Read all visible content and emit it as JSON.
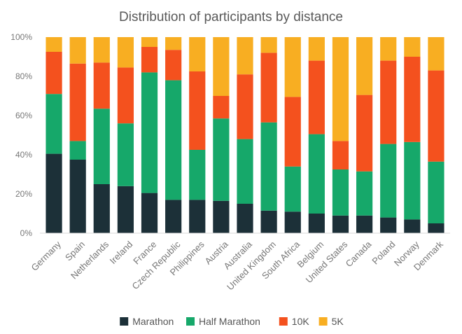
{
  "chart_data": {
    "type": "bar",
    "stacked": true,
    "percent": true,
    "title": "Distribution of participants by distance",
    "xlabel": "",
    "ylabel": "",
    "ylim": [
      0,
      100
    ],
    "y_ticks": [
      "0%",
      "20%",
      "40%",
      "60%",
      "80%",
      "100%"
    ],
    "grid": false,
    "legend_position": "bottom",
    "categories": [
      "Germany",
      "Spain",
      "Netherlands",
      "Ireland",
      "France",
      "Czech Republic",
      "Philippines",
      "Austria",
      "Australia",
      "United Kingdom",
      "South Africa",
      "Belgium",
      "United States",
      "Canada",
      "Poland",
      "Norway",
      "Denmark"
    ],
    "series": [
      {
        "name": "Marathon",
        "color": "#1c3038",
        "values": [
          40.5,
          37.5,
          25,
          24,
          20.5,
          17,
          17,
          16.5,
          15,
          11.5,
          11,
          10,
          9,
          9,
          8,
          7,
          5
        ]
      },
      {
        "name": "Half Marathon",
        "color": "#16a86a",
        "values": [
          30.5,
          9.5,
          38.5,
          32,
          61.5,
          61,
          25.5,
          42,
          33,
          45,
          23,
          40.5,
          23.5,
          22.5,
          37.5,
          39.5,
          31.5
        ]
      },
      {
        "name": "10K",
        "color": "#f4511e",
        "values": [
          21.5,
          39.5,
          23.5,
          28.5,
          13,
          15.5,
          40,
          11.5,
          33,
          35.5,
          35.5,
          37.5,
          14.5,
          39,
          42.5,
          43.5,
          46.5
        ]
      },
      {
        "name": "5K",
        "color": "#f8ae22",
        "values": [
          7.5,
          13.5,
          13,
          15.5,
          5,
          6.5,
          17.5,
          30,
          19,
          8,
          30.5,
          12,
          53,
          29.5,
          12,
          10,
          17
        ]
      }
    ]
  }
}
